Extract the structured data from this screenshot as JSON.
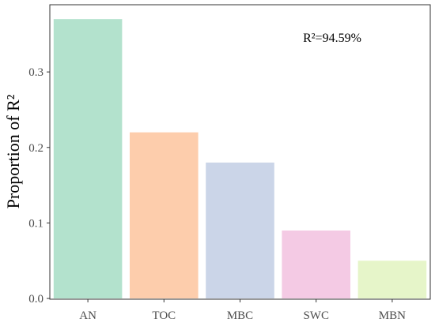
{
  "chart_data": {
    "type": "bar",
    "title": "",
    "xlabel": "",
    "ylabel": "Proportion of R²",
    "categories": [
      "AN",
      "TOC",
      "MBC",
      "SWC",
      "MBN"
    ],
    "values": [
      0.37,
      0.22,
      0.18,
      0.09,
      0.05
    ],
    "colors": [
      "#b3e2cd",
      "#fdcdac",
      "#cbd5e8",
      "#f4cae4",
      "#e6f5c9"
    ],
    "ylim": [
      -0.001,
      0.389
    ],
    "yticks": [
      0.0,
      0.1,
      0.2,
      0.3
    ],
    "ytick_labels": [
      "0.0",
      "0.1",
      "0.2",
      "0.3"
    ],
    "annotation": "R²=94.59%",
    "grid": false,
    "legend": "none"
  }
}
